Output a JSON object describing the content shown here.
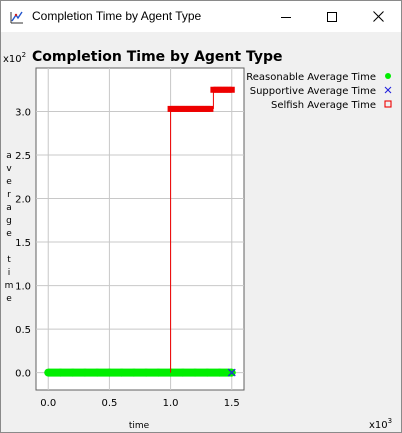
{
  "window": {
    "title": "Completion Time by Agent Type",
    "controls": {
      "minimize": "minimize-icon",
      "maximize": "maximize-icon",
      "close": "close-icon"
    }
  },
  "chart_data": {
    "type": "scatter",
    "title": "Completion Time by Agent Type",
    "xlabel": "time",
    "ylabel": "average time",
    "x_scale_label": "x10",
    "x_scale_exp": "3",
    "y_scale_label": "x10",
    "y_scale_exp": "2",
    "xlim": [
      -0.1,
      1.6
    ],
    "ylim": [
      -0.2,
      3.5
    ],
    "x_ticks": [
      0.0,
      0.5,
      1.0,
      1.5
    ],
    "x_tick_labels": [
      "0.0",
      "0.5",
      "1.0",
      "1.5"
    ],
    "y_ticks": [
      0.0,
      0.5,
      1.0,
      1.5,
      2.0,
      2.5,
      3.0
    ],
    "y_tick_labels": [
      "0.0",
      "0.5",
      "1.0",
      "1.5",
      "2.0",
      "2.5",
      "3.0"
    ],
    "grid": true,
    "legend_position": "right",
    "series": [
      {
        "name": "Reasonable Average Time",
        "marker": "circle",
        "color": "#00ee00",
        "x": [
          0.0,
          0.1,
          0.2,
          0.3,
          0.4,
          0.5,
          0.6,
          0.7,
          0.8,
          0.9,
          1.0,
          1.1,
          1.2,
          1.3,
          1.4,
          1.5
        ],
        "y": [
          0.0,
          0.0,
          0.0,
          0.0,
          0.0,
          0.0,
          0.0,
          0.0,
          0.0,
          0.0,
          0.0,
          0.0,
          0.0,
          0.0,
          0.0,
          0.0
        ]
      },
      {
        "name": "Supportive Average Time",
        "marker": "x",
        "color": "#2222dd",
        "x": [
          1.5
        ],
        "y": [
          0.0
        ]
      },
      {
        "name": "Selfish Average Time",
        "marker": "square",
        "color": "#ee0000",
        "x": [
          1.0,
          1.05,
          1.1,
          1.15,
          1.2,
          1.25,
          1.3,
          1.35,
          1.4,
          1.45,
          1.5
        ],
        "y": [
          3.03,
          3.03,
          3.03,
          3.03,
          3.03,
          3.03,
          3.03,
          3.25,
          3.25,
          3.25,
          3.25
        ]
      }
    ]
  }
}
